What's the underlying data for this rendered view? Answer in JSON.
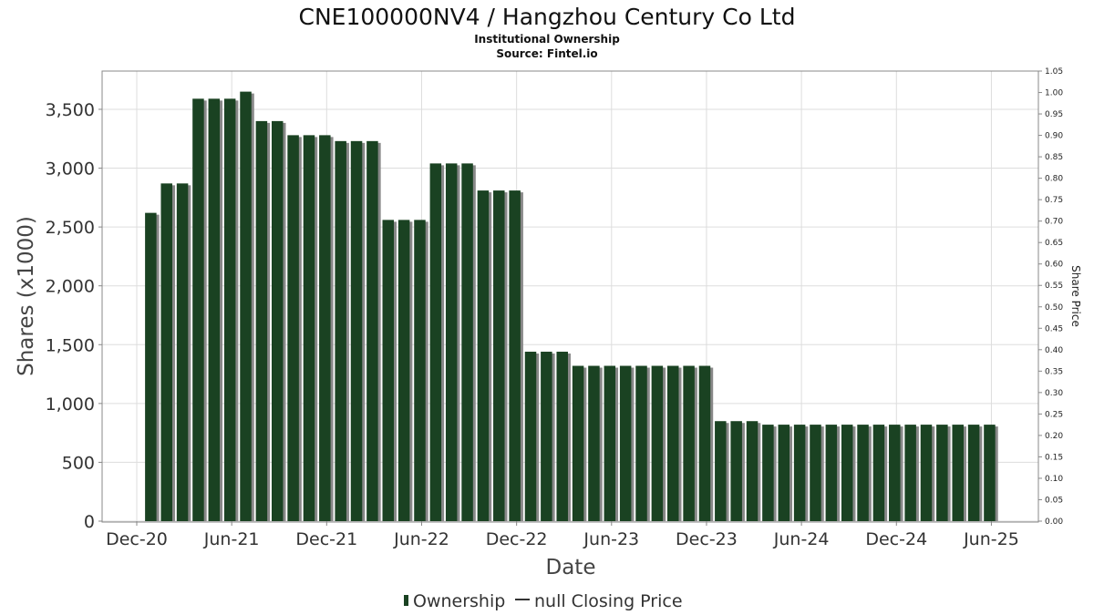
{
  "chart_data": {
    "type": "bar",
    "title": "CNE100000NV4 / Hangzhou Century Co Ltd",
    "subtitle": "Institutional Ownership",
    "source": "Source: Fintel.io",
    "xlabel": "Date",
    "ylabel": "Shares (x1000)",
    "y2label": "Share Price",
    "ylim": [
      0,
      3825
    ],
    "y2lim": [
      0,
      1.05
    ],
    "grid": true,
    "legend_placement": "bottom",
    "legend": [
      "Ownership",
      "null Closing Price"
    ],
    "yticks": [
      "0",
      "500",
      "1,000",
      "1,500",
      "2,000",
      "2,500",
      "3,000",
      "3,500"
    ],
    "y2ticks": [
      "0.00",
      "0.05",
      "0.10",
      "0.15",
      "0.20",
      "0.25",
      "0.30",
      "0.35",
      "0.40",
      "0.45",
      "0.50",
      "0.55",
      "0.60",
      "0.65",
      "0.70",
      "0.75",
      "0.80",
      "0.85",
      "0.90",
      "0.95",
      "1.00",
      "1.05"
    ],
    "xticks": [
      "Dec-20",
      "Jun-21",
      "Dec-21",
      "Jun-22",
      "Dec-22",
      "Jun-23",
      "Dec-23",
      "Jun-24",
      "Dec-24",
      "Jun-25"
    ],
    "x": [
      "Jan-21",
      "Feb-21",
      "Mar-21",
      "Apr-21",
      "May-21",
      "Jun-21",
      "Jul-21",
      "Aug-21",
      "Sep-21",
      "Oct-21",
      "Nov-21",
      "Dec-21",
      "Jan-22",
      "Feb-22",
      "Mar-22",
      "Apr-22",
      "May-22",
      "Jun-22",
      "Jul-22",
      "Aug-22",
      "Sep-22",
      "Oct-22",
      "Nov-22",
      "Dec-22",
      "Jan-23",
      "Feb-23",
      "Mar-23",
      "Apr-23",
      "May-23",
      "Jun-23",
      "Jul-23",
      "Aug-23",
      "Sep-23",
      "Oct-23",
      "Nov-23",
      "Dec-23",
      "Jan-24",
      "Feb-24",
      "Mar-24",
      "Apr-24",
      "May-24",
      "Jun-24",
      "Jul-24",
      "Aug-24",
      "Sep-24",
      "Oct-24",
      "Nov-24",
      "Dec-24",
      "Jan-25",
      "Feb-25",
      "Mar-25",
      "Apr-25",
      "May-25",
      "Jun-25"
    ],
    "series": [
      {
        "name": "Ownership",
        "color": "#1a4222",
        "values": [
          2620,
          2870,
          2870,
          3590,
          3590,
          3590,
          3650,
          3400,
          3400,
          3280,
          3280,
          3280,
          3230,
          3230,
          3230,
          2560,
          2560,
          2560,
          3040,
          3040,
          3040,
          2810,
          2810,
          2810,
          1440,
          1440,
          1440,
          1320,
          1320,
          1320,
          1320,
          1320,
          1320,
          1320,
          1320,
          1320,
          850,
          850,
          850,
          820,
          820,
          820,
          820,
          820,
          820,
          820,
          820,
          820,
          820,
          820,
          820,
          820,
          820,
          820
        ]
      }
    ]
  }
}
